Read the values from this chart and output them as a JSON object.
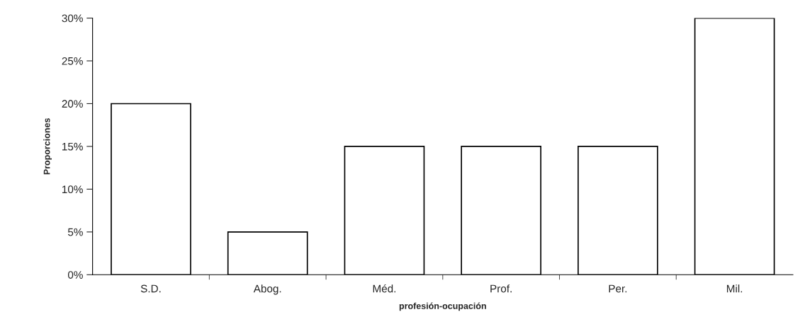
{
  "chart_data": {
    "type": "bar",
    "xlabel": "profesión-ocupación",
    "ylabel": "Proporciones",
    "categories": [
      "S.D.",
      "Abog.",
      "Méd.",
      "Prof.",
      "Per.",
      "Mil."
    ],
    "values": [
      20,
      5,
      15,
      15,
      15,
      30
    ],
    "color": "#ffffff",
    "ylim": [
      0,
      30
    ],
    "yticks": [
      {
        "value": 0,
        "label": "0%"
      },
      {
        "value": 5,
        "label": "5%"
      },
      {
        "value": 10,
        "label": "10%"
      },
      {
        "value": 15,
        "label": "15%"
      },
      {
        "value": 20,
        "label": "20%"
      },
      {
        "value": 25,
        "label": "25%"
      },
      {
        "value": 30,
        "label": "30%"
      }
    ],
    "grid": false,
    "legend": false
  }
}
